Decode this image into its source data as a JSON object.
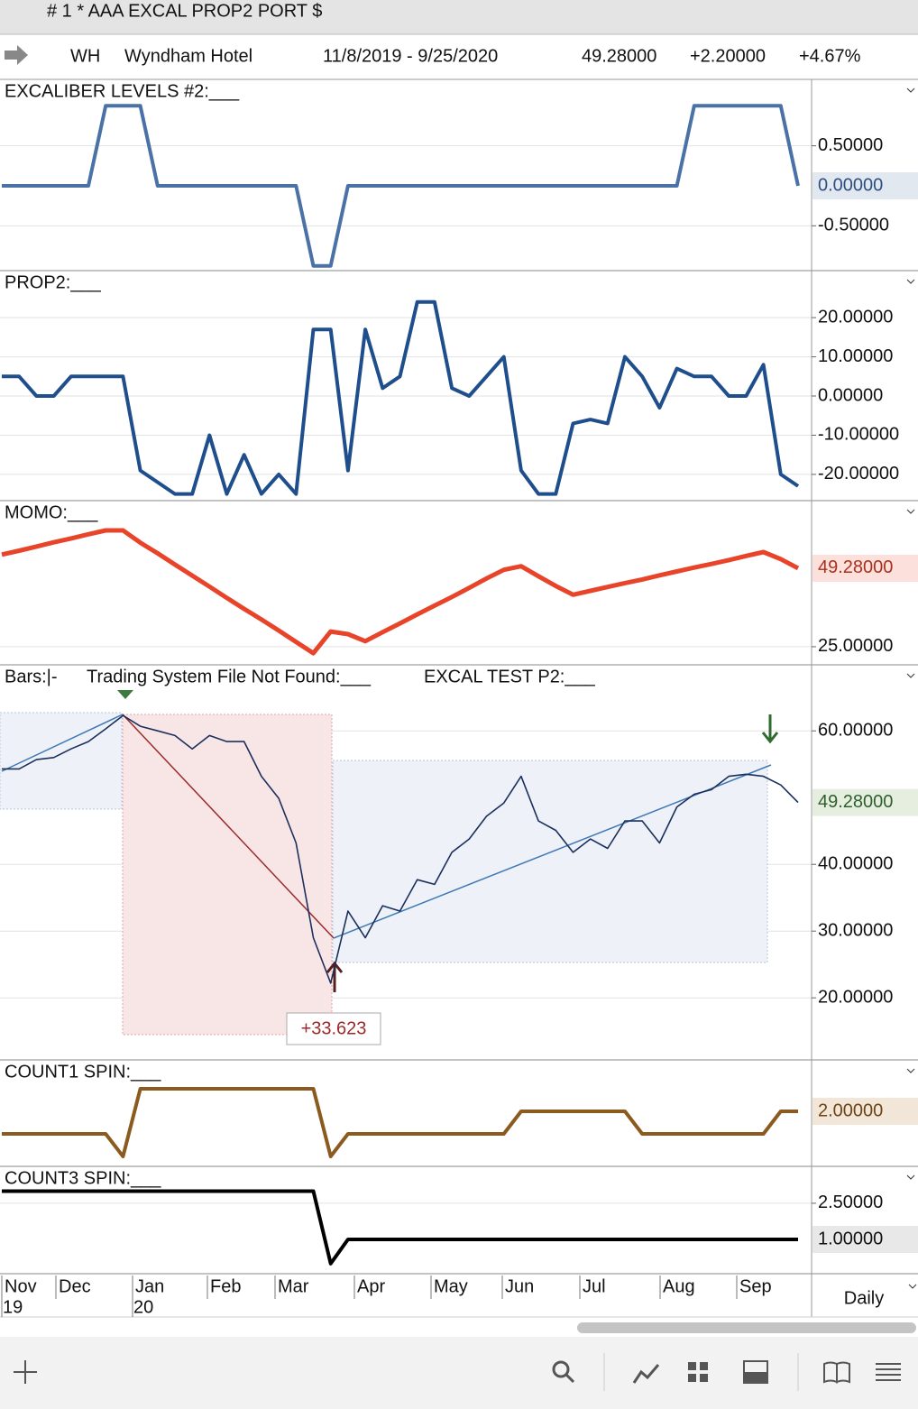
{
  "title_bar": "# 1 * AAA EXCAL PROP2 PORT $",
  "header": {
    "symbol": "WH",
    "name": "Wyndham Hotel",
    "range": "11/8/2019 - 9/25/2020",
    "last": "49.28000",
    "change": "+2.20000",
    "change_pct": "+4.67%"
  },
  "chart_data": [
    {
      "type": "line",
      "titles": [
        "EXCALIBER LEVELS #2:___"
      ],
      "ylim": [
        -1.06,
        1.33
      ],
      "yticks": [
        {
          "value": 0.5,
          "label": "0.50000"
        },
        {
          "value": -0.5,
          "label": "-0.50000"
        }
      ],
      "last_value_label": "0.00000",
      "last_color": "#e2e8f0",
      "series": [
        {
          "color": "#4a72a6",
          "width": 4,
          "values": [
            0,
            0,
            0,
            0,
            0,
            0,
            1,
            1,
            1,
            0,
            0,
            0,
            0,
            0,
            0,
            0,
            0,
            0,
            -1,
            -1,
            0,
            0,
            0,
            0,
            0,
            0,
            0,
            0,
            0,
            0,
            0,
            0,
            0,
            0,
            0,
            0,
            0,
            0,
            0,
            0,
            1,
            1,
            1,
            1,
            1,
            1,
            0
          ]
        }
      ]
    },
    {
      "type": "line",
      "titles": [
        "PROP2:___"
      ],
      "ylim": [
        -26.7,
        32
      ],
      "yticks": [
        {
          "value": 20,
          "label": "20.00000"
        },
        {
          "value": 10,
          "label": "10.00000"
        },
        {
          "value": 0,
          "label": "0.00000"
        },
        {
          "value": -10,
          "label": "-10.00000"
        },
        {
          "value": -20,
          "label": "-20.00000"
        }
      ],
      "series": [
        {
          "color": "#1f4e8c",
          "width": 4,
          "values": [
            5,
            5,
            0,
            0,
            5,
            5,
            5,
            5,
            -19,
            -22,
            -25,
            -25,
            -10,
            -25,
            -15,
            -25,
            -20,
            -25,
            17,
            17,
            -19,
            17,
            2,
            5,
            24,
            24,
            2,
            0,
            5,
            10,
            -19,
            -25,
            -25,
            -7,
            -6,
            -7,
            10,
            5,
            -3,
            7,
            5,
            5,
            0,
            0,
            8,
            -20,
            -23
          ]
        }
      ]
    },
    {
      "type": "line",
      "titles": [
        "MOMO:___"
      ],
      "ylim": [
        19.4,
        70.2
      ],
      "yticks": [
        {
          "value": 25,
          "label": "25.00000"
        }
      ],
      "last_value_label": "49.28000",
      "last_color": "#fbe0dc",
      "series": [
        {
          "color": "#e8442a",
          "width": 5,
          "values": [
            53.5,
            54.7,
            56.0,
            57.3,
            58.5,
            59.8,
            61.0,
            61.0,
            57.2,
            53.9,
            50.4,
            47.0,
            43.6,
            40.1,
            36.7,
            33.4,
            30.0,
            26.5,
            23.0,
            29.7,
            28.9,
            26.7,
            29.5,
            32.2,
            35.0,
            37.7,
            40.4,
            43.2,
            46.1,
            48.8,
            49.9,
            46.8,
            43.8,
            41.1,
            42.3,
            43.5,
            44.7,
            45.8,
            47.1,
            48.3,
            49.5,
            50.6,
            51.8,
            53.1,
            54.3,
            52.1,
            49.28
          ]
        }
      ]
    },
    {
      "type": "line",
      "titles": [
        "Bars:|-",
        "Trading System File Not Found:___",
        "EXCAL  TEST P2:___"
      ],
      "ylim": [
        10.7,
        69.9
      ],
      "yticks": [
        {
          "value": 60,
          "label": "60.00000"
        },
        {
          "value": 40,
          "label": "40.00000"
        },
        {
          "value": 30,
          "label": "30.00000"
        },
        {
          "value": 20,
          "label": "20.00000"
        }
      ],
      "last_value_label": "49.28000",
      "last_color": "#e6efdf",
      "annotation": "+33.623",
      "series": [
        {
          "color": "#1b2f5c",
          "width": 1.6,
          "values": [
            54.3,
            54.3,
            55.7,
            56,
            57.3,
            58.4,
            60.3,
            62.3,
            60.7,
            60,
            59.3,
            57.3,
            59.3,
            58.4,
            58.4,
            53.2,
            49.9,
            43.2,
            29,
            22.2,
            33,
            29,
            33.8,
            33,
            37.7,
            37,
            41.8,
            43.8,
            47.2,
            49.2,
            53.2,
            46.5,
            45.1,
            41.8,
            43.8,
            42.4,
            46.5,
            46.5,
            43.2,
            48.6,
            50.5,
            51.2,
            53.2,
            53.5,
            53.2,
            51.9,
            49.28
          ]
        }
      ]
    },
    {
      "type": "line",
      "titles": [
        "COUNT1 SPIN:___"
      ],
      "ylim": [
        -0.44,
        4.28
      ],
      "yticks": [],
      "last_value_label": "2.00000",
      "last_color": "#f1e6d8",
      "series": [
        {
          "color": "#8b5a1e",
          "width": 4,
          "values": [
            1,
            1,
            1,
            1,
            1,
            1,
            1,
            0,
            3,
            3,
            3,
            3,
            3,
            3,
            3,
            3,
            3,
            3,
            3,
            0,
            1,
            1,
            1,
            1,
            1,
            1,
            1,
            1,
            1,
            1,
            2,
            2,
            2,
            2,
            2,
            2,
            2,
            1,
            1,
            1,
            1,
            1,
            1,
            1,
            1,
            2,
            2
          ]
        }
      ]
    },
    {
      "type": "line",
      "titles": [
        "COUNT3 SPIN:___"
      ],
      "ylim": [
        -0.42,
        4.03
      ],
      "yticks": [
        {
          "value": 2.5,
          "label": "2.50000"
        }
      ],
      "last_value_label": "1.00000",
      "last_color": "#e8e8e8",
      "series": [
        {
          "color": "#000000",
          "width": 4,
          "values": [
            3,
            3,
            3,
            3,
            3,
            3,
            3,
            3,
            3,
            3,
            3,
            3,
            3,
            3,
            3,
            3,
            3,
            3,
            3,
            0,
            1,
            1,
            1,
            1,
            1,
            1,
            1,
            1,
            1,
            1,
            1,
            1,
            1,
            1,
            1,
            1,
            1,
            1,
            1,
            1,
            1,
            1,
            1,
            1,
            1,
            1,
            1
          ]
        }
      ]
    }
  ],
  "x_axis": {
    "months": [
      "Nov",
      "Dec",
      "Jan",
      "Feb",
      "Mar",
      "Apr",
      "May",
      "Jun",
      "Jul",
      "Aug",
      "Sep"
    ],
    "years": [
      "19",
      "20"
    ],
    "interval": "Daily"
  }
}
